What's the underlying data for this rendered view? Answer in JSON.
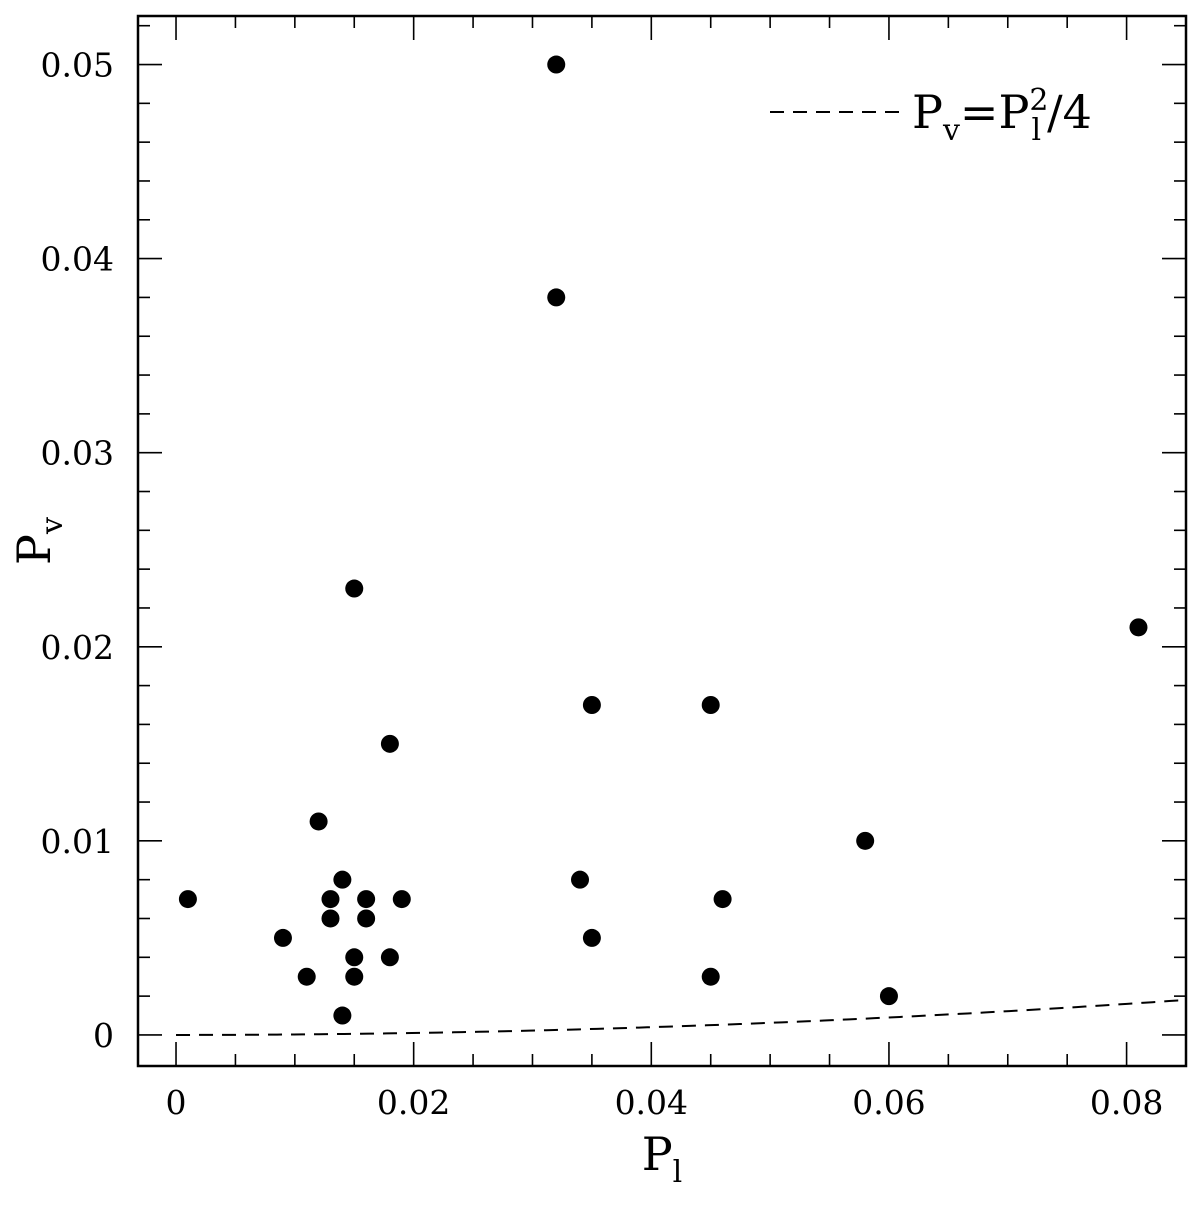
{
  "chart_data": {
    "type": "scatter",
    "xlabel": {
      "base": "P",
      "sub": "l"
    },
    "ylabel": {
      "base": "P",
      "sub": "v"
    },
    "xlim": [
      -0.0032,
      0.085
    ],
    "ylim": [
      -0.0016,
      0.0525
    ],
    "x_ticks": [
      0,
      0.02,
      0.04,
      0.06,
      0.08
    ],
    "x_tick_labels": [
      "0",
      "0.02",
      "0.04",
      "0.06",
      "0.08"
    ],
    "y_ticks": [
      0,
      0.01,
      0.02,
      0.03,
      0.04,
      0.05
    ],
    "y_tick_labels": [
      "0",
      "0.01",
      "0.02",
      "0.03",
      "0.04",
      "0.05"
    ],
    "x_minor_step": 0.005,
    "y_minor_step": 0.002,
    "grid": false,
    "legend": {
      "position": "top-right",
      "entry": {
        "lhs": "P",
        "lhs_sub": "v",
        "eq": "=",
        "rhs": "P",
        "rhs_sub": "l",
        "rhs_sup": "2",
        "rest": "/4"
      }
    },
    "curve": {
      "style": "dashed",
      "coefficient": 0.25,
      "power": 2,
      "x_range": [
        0,
        0.085
      ]
    },
    "points": [
      {
        "x": 0.032,
        "y": 0.05
      },
      {
        "x": 0.032,
        "y": 0.038
      },
      {
        "x": 0.015,
        "y": 0.023
      },
      {
        "x": 0.081,
        "y": 0.021
      },
      {
        "x": 0.035,
        "y": 0.017
      },
      {
        "x": 0.045,
        "y": 0.017
      },
      {
        "x": 0.018,
        "y": 0.015
      },
      {
        "x": 0.012,
        "y": 0.011
      },
      {
        "x": 0.058,
        "y": 0.01
      },
      {
        "x": 0.014,
        "y": 0.008
      },
      {
        "x": 0.034,
        "y": 0.008
      },
      {
        "x": 0.001,
        "y": 0.007
      },
      {
        "x": 0.013,
        "y": 0.007
      },
      {
        "x": 0.016,
        "y": 0.007
      },
      {
        "x": 0.019,
        "y": 0.007
      },
      {
        "x": 0.046,
        "y": 0.007
      },
      {
        "x": 0.013,
        "y": 0.006
      },
      {
        "x": 0.016,
        "y": 0.006
      },
      {
        "x": 0.009,
        "y": 0.005
      },
      {
        "x": 0.035,
        "y": 0.005
      },
      {
        "x": 0.015,
        "y": 0.004
      },
      {
        "x": 0.018,
        "y": 0.004
      },
      {
        "x": 0.011,
        "y": 0.003
      },
      {
        "x": 0.015,
        "y": 0.003
      },
      {
        "x": 0.045,
        "y": 0.003
      },
      {
        "x": 0.06,
        "y": 0.002
      },
      {
        "x": 0.014,
        "y": 0.001
      }
    ]
  }
}
